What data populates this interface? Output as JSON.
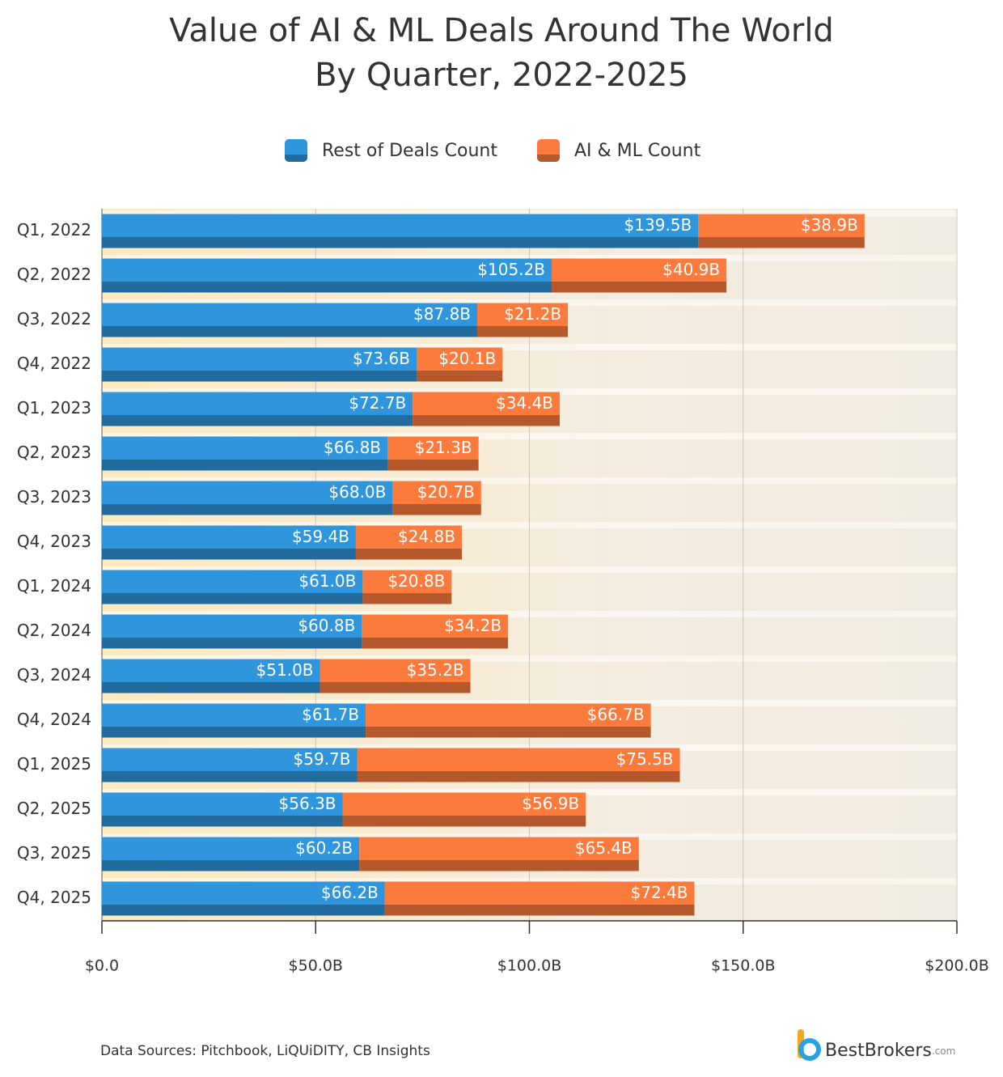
{
  "chart_data": {
    "type": "stacked-bar-horizontal",
    "title": "Value of AI & ML Deals Around The World",
    "subtitle": "By Quarter, 2022-2025",
    "categories": [
      "Q1, 2022",
      "Q2, 2022",
      "Q3, 2022",
      "Q4, 2022",
      "Q1, 2023",
      "Q2, 2023",
      "Q3, 2023",
      "Q4, 2023",
      "Q1, 2024",
      "Q2, 2024",
      "Q3, 2024",
      "Q4, 2024",
      "Q1, 2025",
      "Q2, 2025",
      "Q3, 2025",
      "Q4, 2025"
    ],
    "series": [
      {
        "name": "Rest of Deals Count",
        "color": "#2f95dc",
        "values": [
          139.5,
          105.2,
          87.8,
          73.6,
          72.7,
          66.8,
          68.0,
          59.4,
          61.0,
          60.8,
          51.0,
          61.7,
          59.7,
          56.3,
          60.2,
          66.2
        ],
        "value_labels": [
          "$139.5B",
          "$105.2B",
          "$87.8B",
          "$73.6B",
          "$72.7B",
          "$66.8B",
          "$68.0B",
          "$59.4B",
          "$61.0B",
          "$60.8B",
          "$51.0B",
          "$61.7B",
          "$59.7B",
          "$56.3B",
          "$60.2B",
          "$66.2B"
        ]
      },
      {
        "name": "AI & ML Count",
        "color": "#fb7a3c",
        "values": [
          38.9,
          40.9,
          21.2,
          20.1,
          34.4,
          21.3,
          20.7,
          24.8,
          20.8,
          34.2,
          35.2,
          66.7,
          75.5,
          56.9,
          65.4,
          72.4
        ],
        "value_labels": [
          "$38.9B",
          "$40.9B",
          "$21.2B",
          "$20.1B",
          "$34.4B",
          "$21.3B",
          "$20.7B",
          "$24.8B",
          "$20.8B",
          "$34.2B",
          "$35.2B",
          "$66.7B",
          "$75.5B",
          "$56.9B",
          "$65.4B",
          "$72.4B"
        ]
      }
    ],
    "xlim": [
      0,
      200
    ],
    "xticks": [
      {
        "value": 0,
        "label": "$0.0"
      },
      {
        "value": 50,
        "label": "$50.0B"
      },
      {
        "value": 100,
        "label": "$100.0B"
      },
      {
        "value": 150,
        "label": "$150.0B"
      },
      {
        "value": 200,
        "label": "$200.0B"
      }
    ],
    "grid": true,
    "legend": "top",
    "source": "Data Sources: Pitchbook, LiQUiDITY, CB Insights",
    "brand": "BestBrokers",
    "brand_suffix": ".com"
  }
}
